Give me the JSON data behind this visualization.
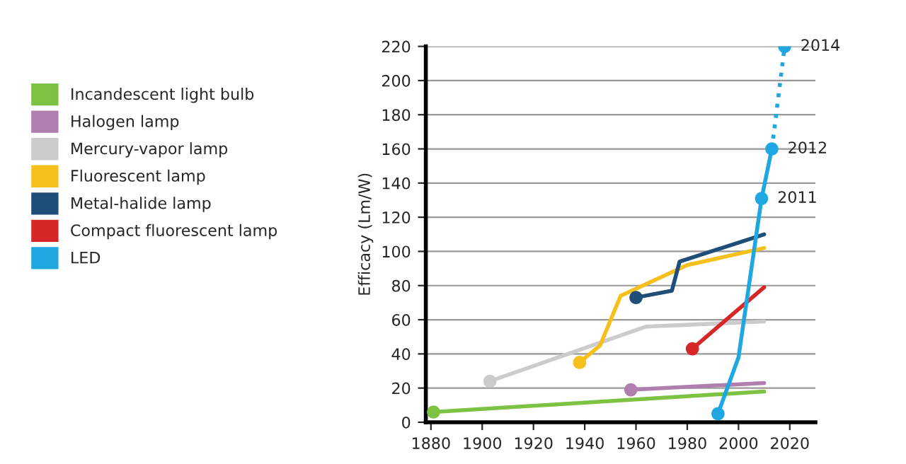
{
  "chart_data": {
    "type": "line",
    "ylabel": "Efficacy (Lm/W)",
    "xlim": [
      1878,
      2030
    ],
    "xticks": [
      1880,
      1900,
      1920,
      1940,
      1960,
      1980,
      2000,
      2020
    ],
    "ylim": [
      0,
      220
    ],
    "yticks": [
      0,
      20,
      40,
      60,
      80,
      100,
      120,
      140,
      160,
      180,
      200,
      220
    ],
    "grid": "y",
    "legend": "left",
    "line_style": "solid",
    "series": [
      {
        "name": "Incandescent light bulb",
        "color": "#7dc242",
        "x": [
          1881,
          2010
        ],
        "values": [
          6,
          18
        ]
      },
      {
        "name": "Halogen lamp",
        "color": "#b07fb0",
        "x": [
          1958,
          2010
        ],
        "values": [
          19,
          23
        ]
      },
      {
        "name": "Mercury-vapor lamp",
        "color": "#cccccc",
        "x": [
          1903,
          1964,
          2010
        ],
        "values": [
          24,
          56,
          59
        ]
      },
      {
        "name": "Fluorescent lamp",
        "color": "#f5c01c",
        "x": [
          1938,
          1946,
          1954,
          1980,
          2010
        ],
        "values": [
          35,
          45,
          74,
          92,
          102
        ]
      },
      {
        "name": "Metal-halide lamp",
        "color": "#1f4e79",
        "x": [
          1960,
          1974,
          1977,
          2010
        ],
        "values": [
          73,
          77,
          94,
          110
        ]
      },
      {
        "name": "Compact fluorescent lamp",
        "color": "#d62728",
        "x": [
          1982,
          2010
        ],
        "values": [
          43,
          79
        ]
      },
      {
        "name": "LED",
        "color": "#1ea7e1",
        "x": [
          1992,
          2000,
          2009,
          2013
        ],
        "values": [
          5,
          38,
          131,
          160
        ]
      },
      {
        "color": "#1ea7e1",
        "x": [
          2013,
          2018
        ],
        "values": [
          160,
          220
        ],
        "line_style": "dotted"
      },
      {
        "type": "scatter",
        "marker": "circle",
        "colors": [
          "#7dc242",
          "#b07fb0",
          "#cccccc",
          "#f5c01c",
          "#1f4e79",
          "#d62728",
          "#1ea7e1",
          "#1ea7e1",
          "#1ea7e1",
          "#1ea7e1"
        ],
        "x": [
          1881,
          1958,
          1903,
          1938,
          1960,
          1982,
          1992,
          2009,
          2013,
          2018
        ],
        "values": [
          6,
          19,
          24,
          35,
          73,
          43,
          5,
          131,
          160,
          220
        ]
      }
    ],
    "annotations": [
      {
        "text": "2011",
        "x": 2009,
        "y": 131
      },
      {
        "text": "2012",
        "x": 2013,
        "y": 160
      },
      {
        "text": "2014",
        "x": 2018,
        "y": 220
      }
    ]
  }
}
